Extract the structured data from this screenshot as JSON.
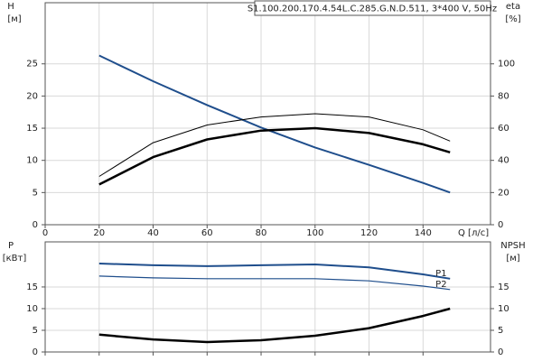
{
  "chart_data": [
    {
      "type": "line",
      "title": "S1.100.200.170.4.54L.C.285.G.N.D.511, 3*400 V, 50Hz",
      "ylabel": "H",
      "yunit": "[м]",
      "y2label": "eta",
      "y2unit": "[%]",
      "xlabel": "Q [л/с]",
      "x": [
        20,
        40,
        60,
        80,
        100,
        120,
        140,
        150
      ],
      "series": [
        {
          "color": "#1f4e8c",
          "linewidth": 2,
          "values": [
            26.3,
            22.3,
            18.6,
            15.1,
            12.0,
            9.3,
            6.5,
            5.0
          ]
        },
        {
          "color": "#000000",
          "linewidth": 1,
          "axis": "y2",
          "values": [
            30,
            51,
            62,
            67,
            69,
            67,
            59,
            52
          ]
        },
        {
          "color": "#000000",
          "linewidth": 2.5,
          "axis": "y2",
          "values": [
            25,
            42,
            53,
            58.5,
            60,
            57,
            50,
            45
          ]
        }
      ],
      "xlim": [
        0,
        165
      ],
      "xticks": [
        0,
        20,
        40,
        60,
        80,
        100,
        120,
        140
      ],
      "ylim": [
        0,
        34.5
      ],
      "yticks": [
        0,
        5,
        10,
        15,
        20,
        25
      ],
      "y2lim": [
        0,
        138
      ],
      "y2ticks": [
        0,
        20,
        40,
        60,
        80,
        100
      ],
      "grid": true
    },
    {
      "type": "line",
      "ylabel": "P",
      "yunit": "[кВт]",
      "y2label": "NPSH",
      "y2unit": "[м]",
      "x": [
        20,
        40,
        60,
        80,
        100,
        120,
        140,
        150
      ],
      "series": [
        {
          "name": "P1",
          "color": "#1f4e8c",
          "linewidth": 2,
          "values": [
            20.4,
            20.0,
            19.8,
            20.0,
            20.2,
            19.5,
            17.9,
            16.9
          ]
        },
        {
          "name": "P2",
          "color": "#1f4e8c",
          "linewidth": 1.2,
          "values": [
            17.5,
            17.1,
            16.9,
            16.9,
            16.9,
            16.4,
            15.2,
            14.4
          ]
        },
        {
          "color": "#000000",
          "linewidth": 2.5,
          "axis": "y2",
          "values": [
            4.0,
            2.9,
            2.3,
            2.7,
            3.75,
            5.5,
            8.3,
            10.0
          ]
        }
      ],
      "xlim": [
        0,
        165
      ],
      "xticks": [
        0,
        20,
        40,
        60,
        80,
        100,
        120,
        140
      ],
      "ylim": [
        0,
        25.4
      ],
      "yticks": [
        0,
        5,
        10,
        15
      ],
      "y2lim": [
        0,
        25.4
      ],
      "y2ticks": [
        0,
        5,
        10,
        15
      ],
      "grid": true
    }
  ]
}
